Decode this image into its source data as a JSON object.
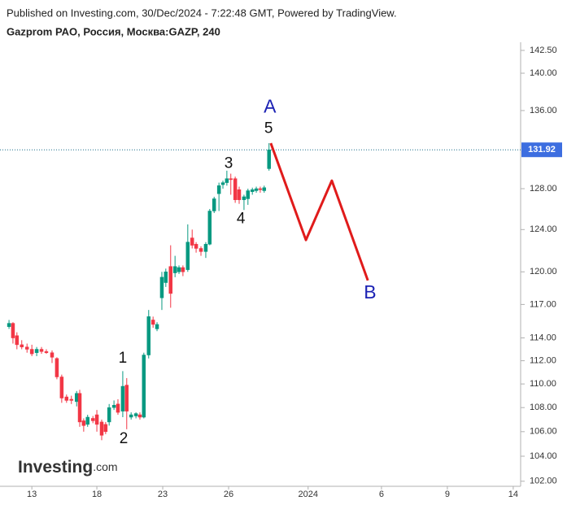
{
  "chart_data": {
    "type": "candlestick",
    "title": "Published on Investing.com, 30/Dec/2024 - 7:22:48 GMT, Powered by TradingView.",
    "subtitle": "Gazprom PAO, Россия, Москва:GAZP, 240",
    "watermark": {
      "brand": "Investing",
      "suffix": ".com"
    },
    "log_scale": true,
    "grid": false,
    "up_color": "#089981",
    "down_color": "#f23645",
    "candles": {
      "x": [
        0.2,
        1.1,
        2.0,
        3.1,
        4.3,
        5.4,
        6.5,
        7.6,
        8.7,
        10.0,
        11.1,
        12.2,
        13.3,
        14.4,
        15.6,
        16.3,
        17.2,
        18.1,
        19.3,
        20.2,
        21.3,
        22.2,
        23.0,
        24.1,
        25.0,
        26.1,
        27.0,
        28.0,
        29.1,
        30.0,
        30.9,
        32.0,
        33.0,
        33.9,
        35.0,
        35.9,
        37.0,
        38.0,
        38.9,
        39.8,
        40.9,
        41.9,
        42.8,
        43.9,
        45.0,
        45.9,
        46.9,
        48.0,
        48.9,
        49.8,
        50.7,
        51.7,
        52.6,
        53.7,
        54.6,
        55.6,
        56.5,
        57.4,
        58.3,
        59.4
      ],
      "open": [
        115.0,
        115.3,
        114.2,
        113.4,
        113.2,
        113.0,
        112.7,
        113.0,
        112.8,
        112.7,
        112.2,
        110.6,
        108.9,
        108.7,
        108.5,
        109.2,
        106.9,
        106.6,
        107.1,
        107.4,
        106.8,
        106.6,
        106.8,
        108.0,
        108.3,
        107.7,
        109.9,
        107.2,
        107.3,
        107.4,
        107.2,
        112.5,
        115.6,
        114.8,
        117.6,
        119.0,
        120.5,
        119.9,
        120.0,
        120.4,
        120.2,
        123.2,
        122.6,
        122.2,
        121.9,
        122.6,
        125.8,
        127.5,
        128.4,
        128.6,
        129.0,
        129.0,
        127.9,
        126.9,
        127.0,
        127.7,
        127.8,
        128.0,
        127.8,
        130.0
      ],
      "high": [
        115.6,
        115.4,
        114.5,
        113.8,
        113.5,
        113.4,
        113.2,
        113.2,
        113.0,
        112.9,
        112.3,
        110.8,
        109.1,
        109.0,
        109.4,
        109.5,
        107.1,
        107.4,
        107.3,
        107.8,
        107.0,
        106.8,
        108.3,
        108.6,
        108.7,
        111.1,
        110.5,
        107.6,
        107.6,
        107.6,
        112.7,
        116.5,
        115.9,
        115.4,
        120.0,
        120.3,
        122.5,
        121.5,
        120.6,
        120.6,
        124.5,
        124.0,
        122.8,
        122.4,
        122.8,
        126.0,
        127.2,
        128.6,
        128.8,
        129.8,
        129.5,
        129.2,
        128.2,
        127.4,
        128.0,
        128.1,
        128.2,
        128.2,
        128.3,
        132.6
      ],
      "low": [
        114.8,
        113.5,
        113.0,
        113.0,
        112.7,
        112.4,
        112.4,
        112.6,
        112.6,
        111.8,
        110.4,
        108.4,
        108.4,
        108.3,
        108.1,
        106.4,
        106.0,
        106.4,
        106.7,
        106.0,
        105.3,
        105.8,
        106.5,
        107.8,
        107.4,
        107.2,
        106.2,
        107.0,
        107.1,
        107.0,
        107.1,
        112.2,
        114.9,
        114.6,
        116.5,
        118.6,
        116.7,
        119.5,
        119.8,
        119.6,
        120.0,
        122.2,
        121.8,
        121.5,
        121.3,
        122.5,
        125.6,
        125.8,
        128.0,
        128.3,
        127.4,
        126.6,
        126.5,
        125.9,
        126.4,
        127.4,
        127.6,
        127.6,
        127.6,
        129.8
      ],
      "close": [
        115.3,
        114.0,
        113.4,
        113.2,
        113.0,
        112.6,
        113.0,
        112.8,
        112.7,
        112.3,
        110.6,
        108.8,
        108.6,
        108.6,
        109.2,
        106.8,
        106.5,
        107.2,
        106.9,
        106.6,
        105.7,
        106.0,
        108.0,
        108.2,
        107.6,
        109.8,
        107.7,
        107.4,
        107.5,
        107.2,
        112.5,
        115.9,
        115.2,
        115.2,
        119.5,
        120.0,
        118.0,
        120.5,
        120.4,
        120.0,
        122.8,
        122.5,
        122.2,
        121.9,
        122.6,
        125.8,
        127.0,
        128.3,
        128.6,
        129.0,
        128.9,
        126.9,
        126.9,
        127.2,
        127.8,
        127.9,
        128.0,
        127.9,
        128.1,
        131.92
      ]
    },
    "projection": {
      "color": "#e01b1b",
      "x": [
        59.8,
        67.8,
        73.7,
        81.9
      ],
      "values": [
        132.6,
        123.0,
        128.8,
        119.2
      ]
    },
    "annotations": [
      {
        "text": "1",
        "x": 26.1,
        "y": 112.2,
        "color": "#111111"
      },
      {
        "text": "2",
        "x": 26.3,
        "y": 105.4,
        "color": "#111111"
      },
      {
        "text": "3",
        "x": 50.2,
        "y": 130.5,
        "color": "#111111"
      },
      {
        "text": "4",
        "x": 53.0,
        "y": 125.0,
        "color": "#111111"
      },
      {
        "text": "5",
        "x": 59.3,
        "y": 134.1,
        "color": "#111111"
      },
      {
        "text": "A",
        "x": 59.6,
        "y": 136.3,
        "color": "#1c22b4"
      },
      {
        "text": "B",
        "x": 82.4,
        "y": 118.0,
        "color": "#1c22b4"
      }
    ],
    "last_price": {
      "value": 131.92,
      "label": "131.92",
      "color": "#3d6ee0"
    },
    "xlim": [
      0,
      116.5
    ],
    "xticks": [
      {
        "value": 5.4,
        "label": "13"
      },
      {
        "value": 20.2,
        "label": "18"
      },
      {
        "value": 35.2,
        "label": "23"
      },
      {
        "value": 50.2,
        "label": "26"
      },
      {
        "value": 68.3,
        "label": "2024"
      },
      {
        "value": 85,
        "label": "6"
      },
      {
        "value": 100,
        "label": "9"
      },
      {
        "value": 115,
        "label": "14"
      }
    ],
    "ylim": [
      101.6,
      143.4
    ],
    "yticks": [
      {
        "value": 102,
        "label": "102.00"
      },
      {
        "value": 104,
        "label": "104.00"
      },
      {
        "value": 106,
        "label": "106.00"
      },
      {
        "value": 108,
        "label": "108.00"
      },
      {
        "value": 110,
        "label": "110.00"
      },
      {
        "value": 112,
        "label": "112.00"
      },
      {
        "value": 114,
        "label": "114.00"
      },
      {
        "value": 117,
        "label": "117.00"
      },
      {
        "value": 120,
        "label": "120.00"
      },
      {
        "value": 124,
        "label": "124.00"
      },
      {
        "value": 128,
        "label": "128.00"
      },
      {
        "value": 136,
        "label": "136.00"
      },
      {
        "value": 140,
        "label": "140.00"
      },
      {
        "value": 142.5,
        "label": "142.50"
      }
    ]
  }
}
